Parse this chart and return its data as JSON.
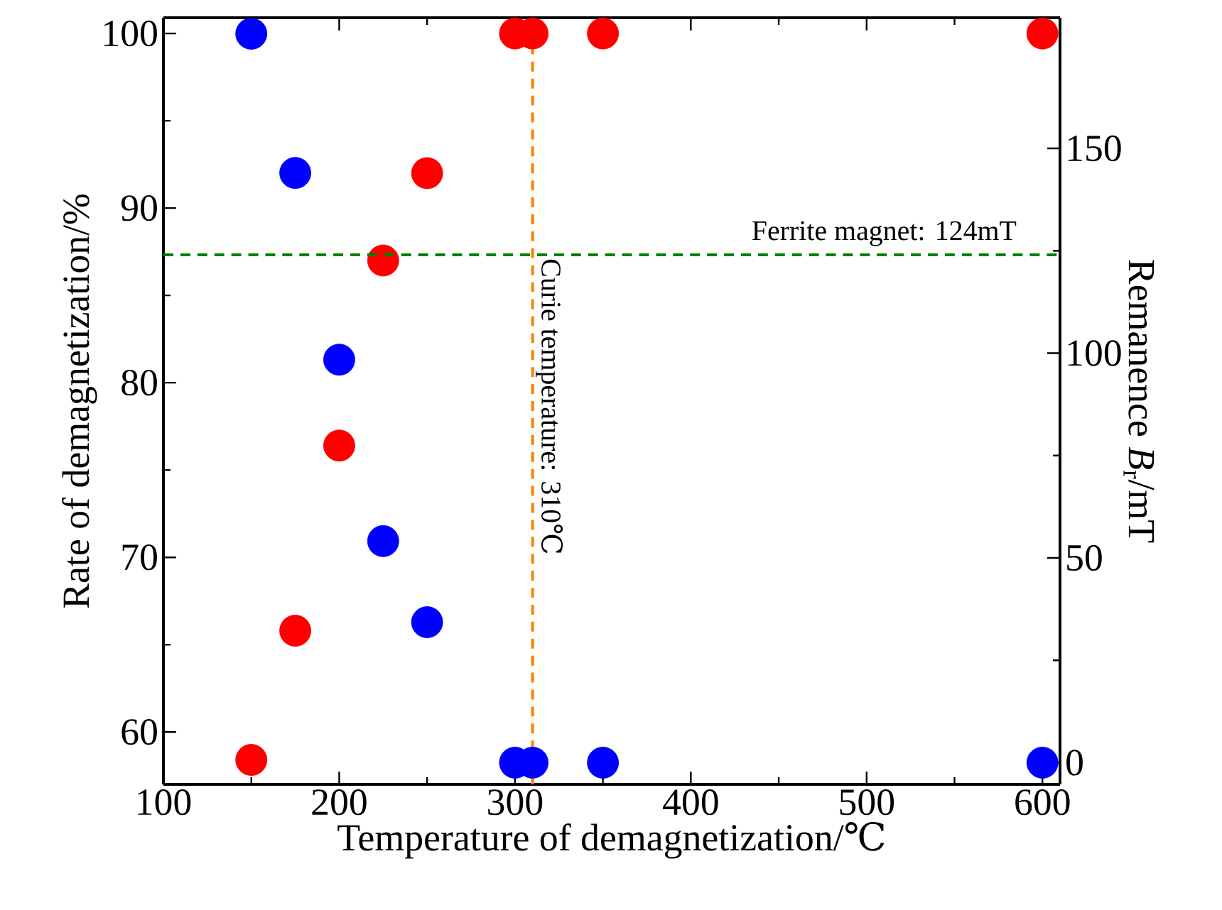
{
  "chart_data": {
    "type": "scatter",
    "xlabel": "Temperature of demagnetization/℃",
    "ylabel": "Rate of demagnetization/%",
    "y2label": "Remanence *B*$_{r}$/mT",
    "xlim": [
      100,
      610
    ],
    "xticks": [
      100,
      200,
      300,
      400,
      500,
      600
    ],
    "ylim": [
      57,
      100.9
    ],
    "yticks": [
      60,
      70,
      80,
      90,
      100
    ],
    "y2lim": [
      -5.3,
      181.9
    ],
    "y2ticks": [
      0,
      50,
      100,
      150
    ],
    "marker": "circle",
    "series": [
      {
        "color": "#ff0000",
        "x": [
          150,
          175,
          200,
          225,
          250,
          300,
          310,
          350,
          600
        ],
        "values": [
          58.4,
          65.8,
          76.4,
          87.0,
          92.0,
          100,
          100,
          100,
          100
        ]
      },
      {
        "color": "#0000ff",
        "axis": "y2",
        "x": [
          150,
          175,
          200,
          225,
          250,
          300,
          310,
          350,
          600
        ],
        "values": [
          178,
          144,
          98.4,
          54.1,
          34.3,
          0,
          0,
          0,
          0
        ]
      }
    ],
    "ref_lines": [
      {
        "axis": "x",
        "value": 310,
        "label": "Curie temperature: 310℃",
        "color": "#ff8000",
        "line_style": "dashed"
      },
      {
        "axis": "y2",
        "value": 124,
        "label": "Ferrite magnet: 124mT",
        "color": "#008000",
        "line_style": "dashed"
      }
    ]
  }
}
